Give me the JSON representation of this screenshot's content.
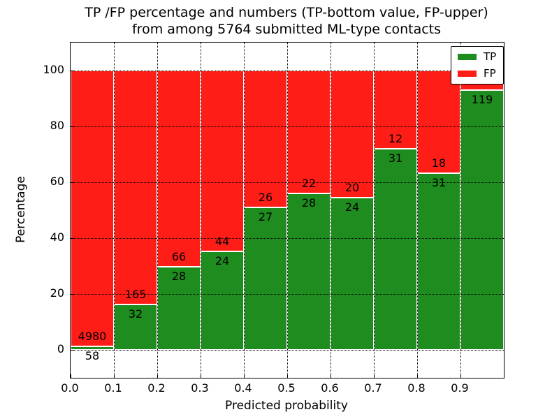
{
  "chart_data": {
    "type": "bar",
    "stacked": true,
    "normalized": "percent",
    "title_line1": "TP /FP percentage and numbers (TP-bottom value, FP-upper)",
    "title_line2": "from among 5764 submitted ML-type contacts",
    "total_contacts": 5764,
    "xlabel": "Predicted probability",
    "ylabel": "Percentage",
    "xlim": [
      0.0,
      1.0
    ],
    "ylim": [
      -10,
      110
    ],
    "grid": true,
    "legend_position": "upper right",
    "xticks": [
      "0.0",
      "0.1",
      "0.2",
      "0.3",
      "0.4",
      "0.5",
      "0.6",
      "0.7",
      "0.8",
      "0.9"
    ],
    "yticks": [
      0,
      20,
      40,
      60,
      80,
      100
    ],
    "legend": [
      {
        "name": "TP",
        "color": "#1e8c1e"
      },
      {
        "name": "FP",
        "color": "#ff1d17"
      }
    ],
    "bins": [
      {
        "range_start": "0.0",
        "tp": 58,
        "fp": 4980
      },
      {
        "range_start": "0.1",
        "tp": 32,
        "fp": 165
      },
      {
        "range_start": "0.2",
        "tp": 28,
        "fp": 66
      },
      {
        "range_start": "0.3",
        "tp": 24,
        "fp": 44
      },
      {
        "range_start": "0.4",
        "tp": 27,
        "fp": 26
      },
      {
        "range_start": "0.5",
        "tp": 28,
        "fp": 22
      },
      {
        "range_start": "0.6",
        "tp": 24,
        "fp": 20
      },
      {
        "range_start": "0.7",
        "tp": 31,
        "fp": 12
      },
      {
        "range_start": "0.8",
        "tp": 31,
        "fp": 18
      },
      {
        "range_start": "0.9",
        "tp": 119,
        "fp": 9
      }
    ]
  }
}
